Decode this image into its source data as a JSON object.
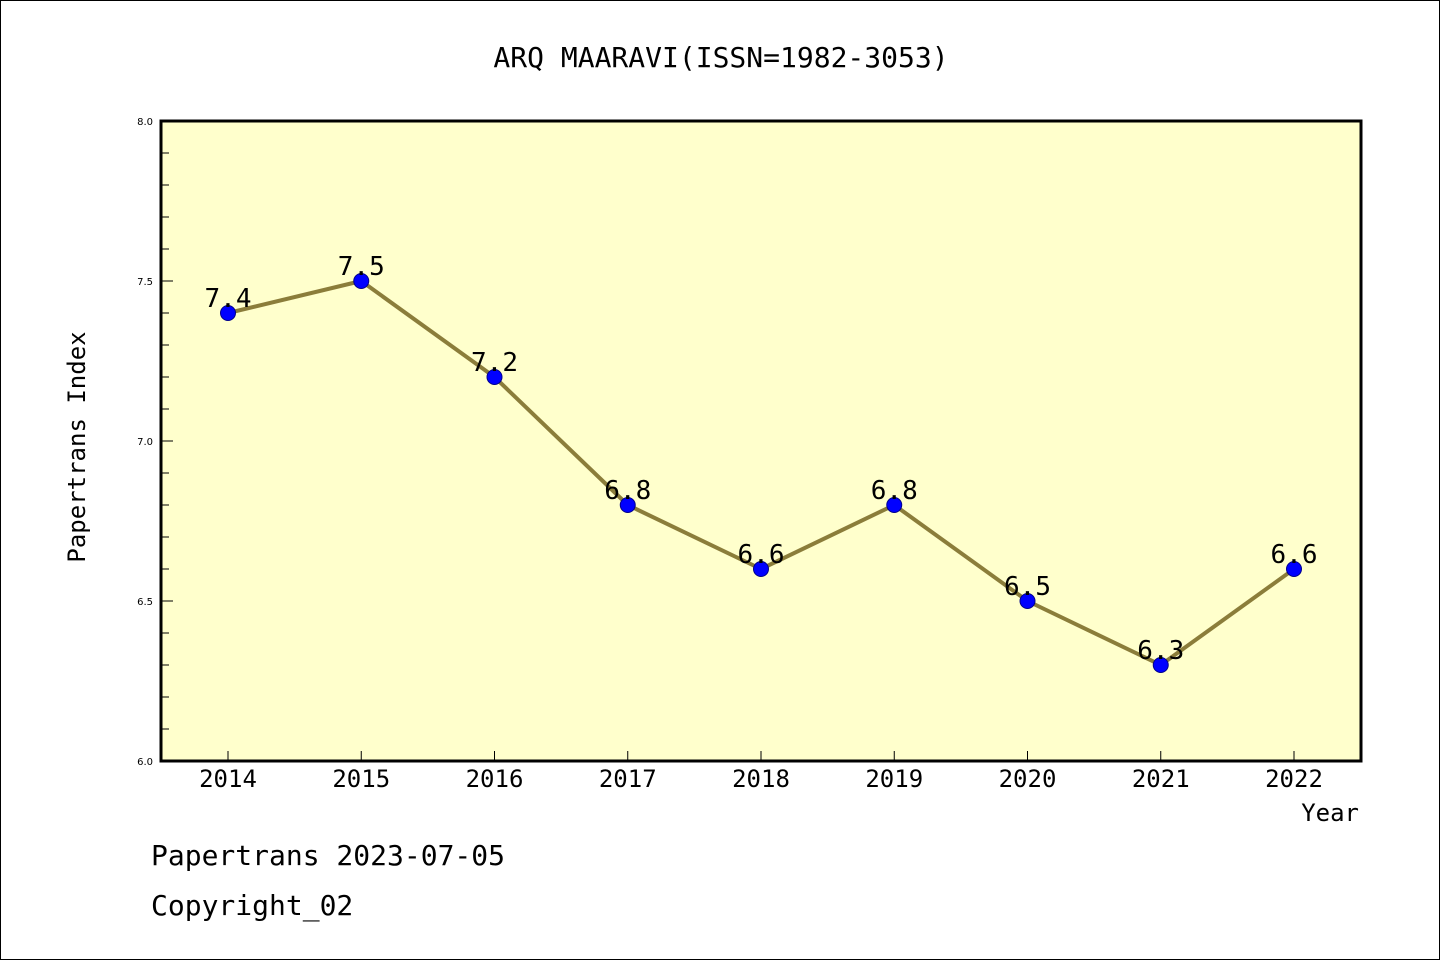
{
  "chart_data": {
    "type": "line",
    "title": "ARQ MAARAVI(ISSN=1982-3053)",
    "xlabel": "Year",
    "ylabel": "Papertrans Index",
    "categories": [
      "2014",
      "2015",
      "2016",
      "2017",
      "2018",
      "2019",
      "2020",
      "2021",
      "2022"
    ],
    "series": [
      {
        "values": [
          7.4,
          7.5,
          7.2,
          6.8,
          6.6,
          6.8,
          6.5,
          6.3,
          6.6
        ],
        "data_labels": [
          "7.4",
          "7.5",
          "7.2",
          "6.8",
          "6.6",
          "6.8",
          "6.5",
          "6.3",
          "6.6"
        ]
      }
    ],
    "ylim": [
      6.0,
      8.0
    ],
    "yticks": [
      "6.0",
      "6.5",
      "7.0",
      "7.5",
      "8.0"
    ],
    "grid": false,
    "legend": "none",
    "colors": {
      "plot_background": "#ffffcc",
      "line": "#8b7d3a",
      "marker": "#0000ff",
      "marker_edge": "#00008b",
      "axis": "#000000"
    }
  },
  "footer": {
    "line1": "Papertrans 2023-07-05",
    "line2": "Copyright_02"
  }
}
